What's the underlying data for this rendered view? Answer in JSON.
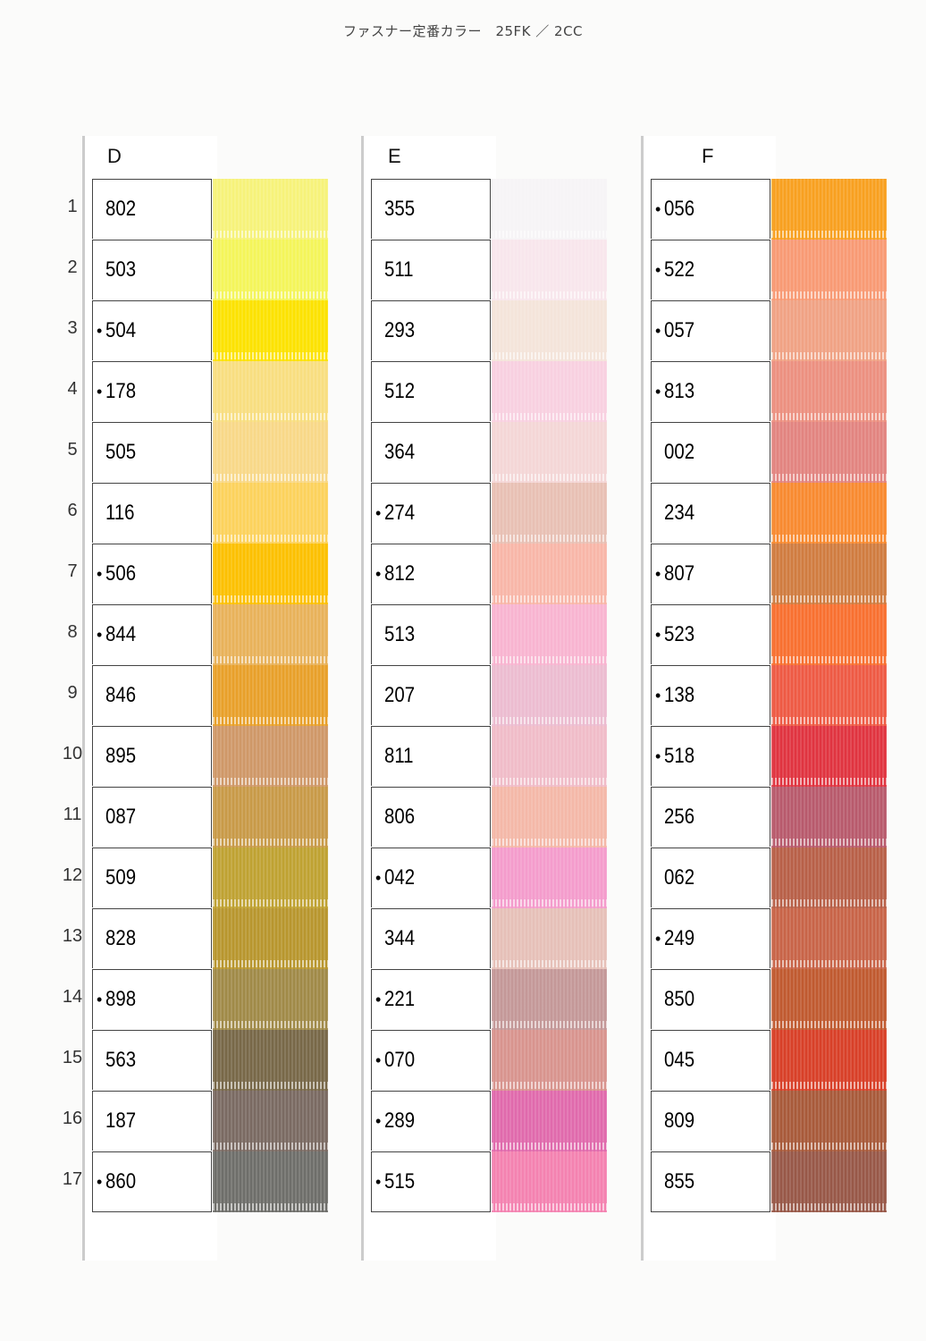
{
  "title": "ファスナー定番カラー　25FK ／ 2CC",
  "columns": [
    {
      "letter": "D",
      "items": [
        {
          "num": "1",
          "code": "802",
          "dot": false,
          "color": "#f6f27a"
        },
        {
          "num": "2",
          "code": "503",
          "dot": false,
          "color": "#f4f55a"
        },
        {
          "num": "3",
          "code": "504",
          "dot": true,
          "color": "#fce200"
        },
        {
          "num": "4",
          "code": "178",
          "dot": true,
          "color": "#f8de80"
        },
        {
          "num": "5",
          "code": "505",
          "dot": false,
          "color": "#f8d888"
        },
        {
          "num": "6",
          "code": "116",
          "dot": false,
          "color": "#fcd25c"
        },
        {
          "num": "7",
          "code": "506",
          "dot": true,
          "color": "#fcc000"
        },
        {
          "num": "8",
          "code": "844",
          "dot": true,
          "color": "#e8b25a"
        },
        {
          "num": "9",
          "code": "846",
          "dot": false,
          "color": "#e8a02a"
        },
        {
          "num": "10",
          "code": "895",
          "dot": false,
          "color": "#cf9868"
        },
        {
          "num": "11",
          "code": "087",
          "dot": false,
          "color": "#c89a48"
        },
        {
          "num": "12",
          "code": "509",
          "dot": false,
          "color": "#bfa232"
        },
        {
          "num": "13",
          "code": "828",
          "dot": false,
          "color": "#b8962e"
        },
        {
          "num": "14",
          "code": "898",
          "dot": true,
          "color": "#a08a48"
        },
        {
          "num": "15",
          "code": "563",
          "dot": false,
          "color": "#786848"
        },
        {
          "num": "16",
          "code": "187",
          "dot": false,
          "color": "#7a6a62"
        },
        {
          "num": "17",
          "code": "860",
          "dot": true,
          "color": "#6e6e6a"
        }
      ]
    },
    {
      "letter": "E",
      "items": [
        {
          "code": "355",
          "dot": false,
          "color": "#f6f4f6"
        },
        {
          "code": "511",
          "dot": false,
          "color": "#f8e6ec"
        },
        {
          "code": "293",
          "dot": false,
          "color": "#f4e4da"
        },
        {
          "code": "512",
          "dot": false,
          "color": "#f8d0e0"
        },
        {
          "code": "364",
          "dot": false,
          "color": "#f4d6d6"
        },
        {
          "code": "274",
          "dot": true,
          "color": "#e8c0b4"
        },
        {
          "code": "812",
          "dot": true,
          "color": "#f8b6a8"
        },
        {
          "code": "513",
          "dot": false,
          "color": "#f8b4d0"
        },
        {
          "code": "207",
          "dot": false,
          "color": "#ecbcd0"
        },
        {
          "code": "811",
          "dot": false,
          "color": "#f0bcc8"
        },
        {
          "code": "806",
          "dot": false,
          "color": "#f4b8a8"
        },
        {
          "code": "042",
          "dot": true,
          "color": "#f49ccc"
        },
        {
          "code": "344",
          "dot": false,
          "color": "#e6c0b8"
        },
        {
          "code": "221",
          "dot": true,
          "color": "#c49898"
        },
        {
          "code": "070",
          "dot": true,
          "color": "#d8948e"
        },
        {
          "code": "289",
          "dot": true,
          "color": "#e06aac"
        },
        {
          "code": "515",
          "dot": true,
          "color": "#f482b0"
        }
      ]
    },
    {
      "letter": "F",
      "items": [
        {
          "code": "056",
          "dot": true,
          "color": "#f8a020"
        },
        {
          "code": "522",
          "dot": true,
          "color": "#f89a74"
        },
        {
          "code": "057",
          "dot": true,
          "color": "#f0a284"
        },
        {
          "code": "813",
          "dot": true,
          "color": "#ec9080"
        },
        {
          "code": "002",
          "dot": false,
          "color": "#e28480"
        },
        {
          "code": "234",
          "dot": false,
          "color": "#f88a30"
        },
        {
          "code": "807",
          "dot": true,
          "color": "#d07c40"
        },
        {
          "code": "523",
          "dot": true,
          "color": "#f87030"
        },
        {
          "code": "138",
          "dot": true,
          "color": "#ee5a44"
        },
        {
          "code": "518",
          "dot": true,
          "color": "#e03440"
        },
        {
          "code": "256",
          "dot": false,
          "color": "#b85a6c"
        },
        {
          "code": "062",
          "dot": false,
          "color": "#b86048"
        },
        {
          "code": "249",
          "dot": true,
          "color": "#c86448"
        },
        {
          "code": "850",
          "dot": false,
          "color": "#c05a30"
        },
        {
          "code": "045",
          "dot": false,
          "color": "#d84028"
        },
        {
          "code": "809",
          "dot": false,
          "color": "#a85a3a"
        },
        {
          "code": "855",
          "dot": false,
          "color": "#985848"
        }
      ]
    }
  ]
}
